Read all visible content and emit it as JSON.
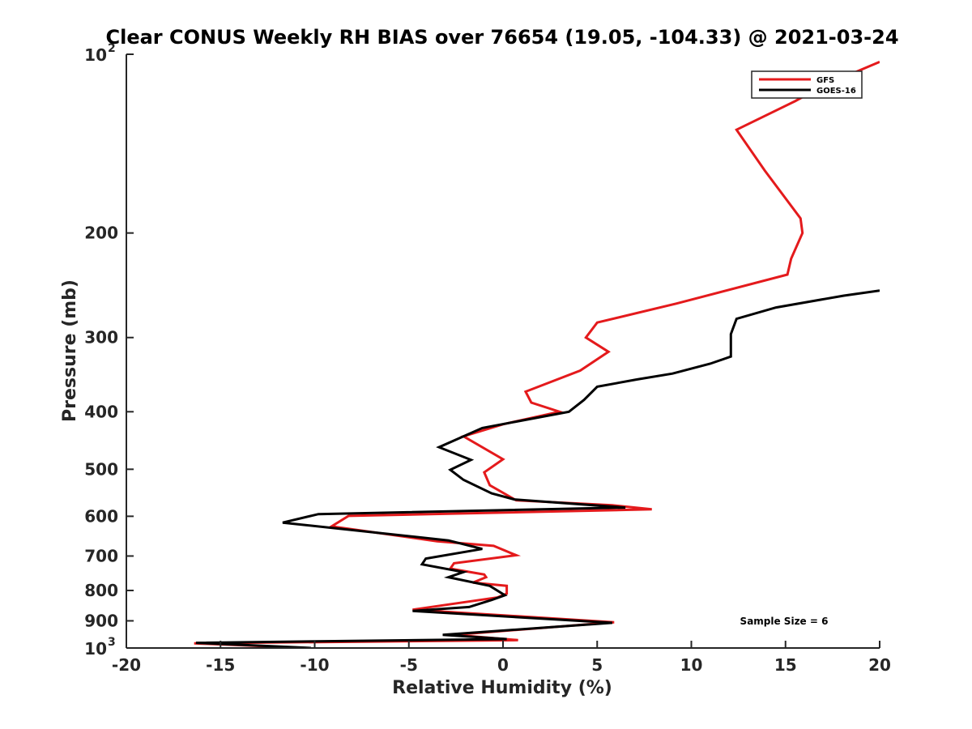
{
  "chart_data": {
    "type": "line",
    "title": "Clear CONUS Weekly RH BIAS over 76654 (19.05, -104.33) @ 2021-03-24",
    "xlabel": "Relative Humidity (%)",
    "ylabel": "Pressure (mb)",
    "xlim": [
      -20,
      20
    ],
    "ylim": [
      100,
      1000
    ],
    "yscale": "log",
    "y_reversed": true,
    "grid": false,
    "legend_position": "top-right",
    "x_ticks": [
      -20,
      -15,
      -10,
      -5,
      0,
      5,
      10,
      15,
      20
    ],
    "x_tick_labels": [
      "-20",
      "-15",
      "-10",
      "-5",
      "0",
      "5",
      "10",
      "15",
      "20"
    ],
    "y_ticks": [
      {
        "value": 100,
        "base": "10",
        "exp": "2"
      },
      {
        "value": 200,
        "label": "200"
      },
      {
        "value": 300,
        "label": "300"
      },
      {
        "value": 400,
        "label": "400"
      },
      {
        "value": 500,
        "label": "500"
      },
      {
        "value": 600,
        "label": "600"
      },
      {
        "value": 700,
        "label": "700"
      },
      {
        "value": 800,
        "label": "800"
      },
      {
        "value": 900,
        "label": "900"
      },
      {
        "value": 1000,
        "base": "10",
        "exp": "3"
      }
    ],
    "annotation": "Sample Size = 6",
    "series": [
      {
        "name": "GFS",
        "color": "#e41a1c",
        "points": [
          [
            20.0,
            103
          ],
          [
            17.0,
            113
          ],
          [
            15.5,
            120
          ],
          [
            12.4,
            134
          ],
          [
            13.9,
            157
          ],
          [
            15.8,
            189
          ],
          [
            15.9,
            200
          ],
          [
            15.3,
            221
          ],
          [
            15.1,
            235
          ],
          [
            9.2,
            263
          ],
          [
            5.0,
            283
          ],
          [
            4.4,
            300
          ],
          [
            5.6,
            317
          ],
          [
            4.1,
            341
          ],
          [
            1.2,
            370
          ],
          [
            1.5,
            386
          ],
          [
            3.0,
            400
          ],
          [
            0.0,
            420
          ],
          [
            -2.1,
            440
          ],
          [
            0.0,
            481
          ],
          [
            -1.0,
            506
          ],
          [
            -0.7,
            532
          ],
          [
            0.7,
            564
          ],
          [
            5.8,
            575
          ],
          [
            7.9,
            584
          ],
          [
            -8.2,
            599
          ],
          [
            -9.1,
            624
          ],
          [
            -3.5,
            661
          ],
          [
            -0.5,
            673
          ],
          [
            0.7,
            698
          ],
          [
            -2.6,
            720
          ],
          [
            -2.8,
            735
          ],
          [
            -1.0,
            752
          ],
          [
            -0.9,
            760
          ],
          [
            -1.6,
            776
          ],
          [
            0.2,
            786
          ],
          [
            0.2,
            810
          ],
          [
            -0.3,
            822
          ],
          [
            -4.8,
            862
          ],
          [
            5.9,
            905
          ],
          [
            -2.6,
            950
          ],
          [
            0.8,
            970
          ],
          [
            -16.4,
            982
          ],
          [
            -10.4,
            1000
          ]
        ]
      },
      {
        "name": "GOES-16",
        "color": "#000000",
        "points": [
          [
            20.0,
            250
          ],
          [
            18.1,
            255
          ],
          [
            14.5,
            267
          ],
          [
            12.4,
            279
          ],
          [
            12.1,
            296
          ],
          [
            12.1,
            323
          ],
          [
            11.0,
            332
          ],
          [
            9.0,
            345
          ],
          [
            7.1,
            353
          ],
          [
            5.0,
            363
          ],
          [
            4.3,
            382
          ],
          [
            3.5,
            400
          ],
          [
            -1.1,
            426
          ],
          [
            -3.4,
            459
          ],
          [
            -1.7,
            482
          ],
          [
            -2.8,
            501
          ],
          [
            -2.1,
            521
          ],
          [
            -0.6,
            549
          ],
          [
            0.6,
            562
          ],
          [
            6.5,
            580
          ],
          [
            -9.8,
            595
          ],
          [
            -11.7,
            615
          ],
          [
            -2.9,
            659
          ],
          [
            -1.1,
            681
          ],
          [
            -4.1,
            707
          ],
          [
            -4.3,
            723
          ],
          [
            -2.1,
            745
          ],
          [
            -2.9,
            760
          ],
          [
            -0.7,
            786
          ],
          [
            0.1,
            815
          ],
          [
            -0.6,
            830
          ],
          [
            -1.8,
            853
          ],
          [
            -4.8,
            866
          ],
          [
            5.8,
            907
          ],
          [
            -3.2,
            950
          ],
          [
            0.2,
            966
          ],
          [
            -16.3,
            980
          ],
          [
            -10.2,
            1000
          ]
        ]
      }
    ]
  }
}
